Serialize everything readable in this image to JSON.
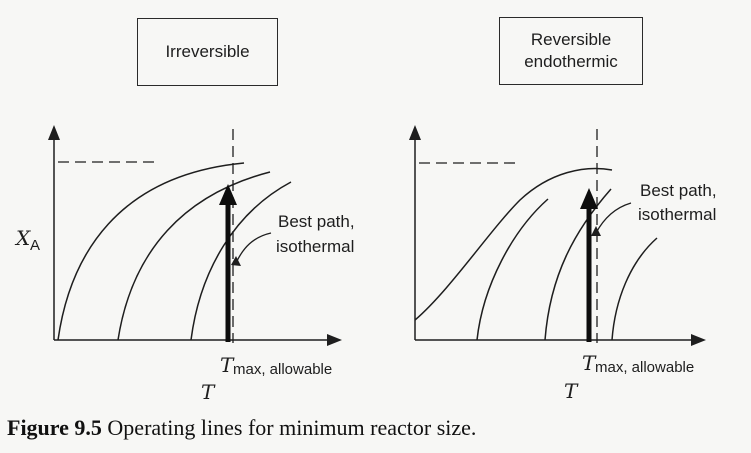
{
  "figure": {
    "caption_number": "Figure 9.5",
    "caption_text": "Operating lines for minimum reactor size."
  },
  "panels": [
    {
      "id": "irreversible",
      "title_lines": [
        "Irreversible"
      ],
      "y_axis_label_main": "X",
      "y_axis_label_sub": "A",
      "x_axis_label": "T",
      "tmax_label_main": "T",
      "tmax_label_sub": "max, allowable",
      "annotation_lines": [
        "Best path,",
        "isothermal"
      ]
    },
    {
      "id": "reversible-endothermic",
      "title_lines": [
        "Reversible",
        "endothermic"
      ],
      "x_axis_label": "T",
      "tmax_label_main": "T",
      "tmax_label_sub": "max, allowable",
      "annotation_lines": [
        "Best path,",
        "isothermal"
      ]
    }
  ],
  "colors": {
    "ink": "#1e1e1e",
    "background": "#f7f7f5"
  }
}
